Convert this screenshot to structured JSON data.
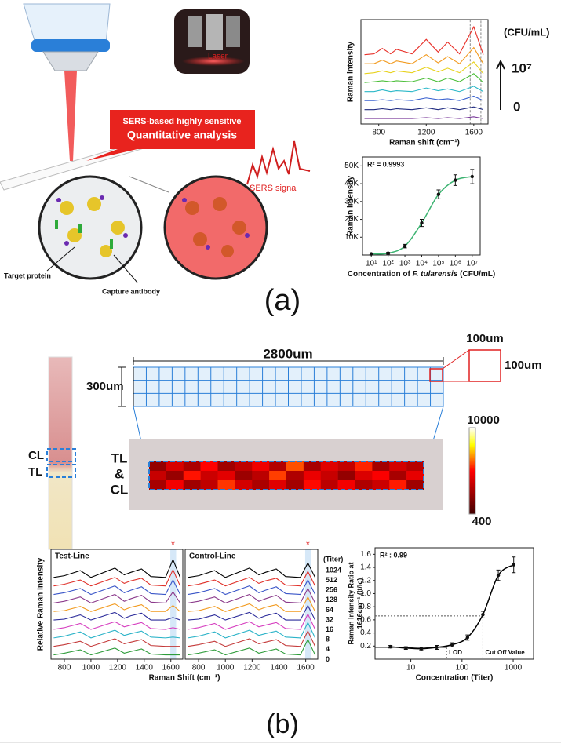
{
  "diagram": {
    "laser": "Laser",
    "callout_line1": "SERS-based highly sensitive",
    "callout_line2": "Quantitative analysis",
    "sers_signal": "SERS signal",
    "target_protein": "Target protein",
    "capture_antibody": "Capture antibody",
    "panel_a": "(a)",
    "panel_b": "(b)",
    "strip_cl": "CL",
    "strip_tl": "TL",
    "grid_width": "2800um",
    "grid_height": "300um",
    "cell_width": "100um",
    "cell_height": "100um"
  },
  "chart_data": [
    {
      "type": "line",
      "ylabel": "Raman intensity",
      "xlabel": "Raman shift (cm⁻¹)",
      "x": [
        680,
        760,
        830,
        900,
        950,
        1080,
        1200,
        1300,
        1380,
        1480,
        1600,
        1680
      ],
      "xlim": [
        650,
        1720
      ],
      "xticks": [
        800,
        1200,
        1600
      ],
      "ylim": [
        -0.6,
        11
      ],
      "highlight_x": [
        1570,
        1660
      ],
      "legend_title": "(CFU/mL)",
      "legend_labels": [
        "10⁷",
        "0"
      ],
      "series": [
        {
          "color": "#e8312a",
          "values": [
            7.1,
            7.2,
            7.8,
            7.2,
            7.7,
            7.2,
            8.8,
            7.4,
            8.5,
            7.2,
            10.2,
            7.1
          ]
        },
        {
          "color": "#f29a1e",
          "values": [
            6.1,
            6.1,
            6.5,
            6.1,
            6.4,
            6.1,
            7.1,
            6.2,
            6.9,
            6.1,
            7.9,
            6.1
          ]
        },
        {
          "color": "#e8d21e",
          "values": [
            5.0,
            5.1,
            5.3,
            5.1,
            5.3,
            5.1,
            5.7,
            5.2,
            5.6,
            5.1,
            6.3,
            5.0
          ]
        },
        {
          "color": "#4cbf3a",
          "values": [
            4.0,
            4.1,
            4.2,
            4.1,
            4.2,
            4.1,
            4.5,
            4.1,
            4.5,
            4.1,
            5.0,
            4.0
          ]
        },
        {
          "color": "#2bb8c8",
          "values": [
            3.0,
            3.0,
            3.2,
            3.0,
            3.1,
            3.0,
            3.4,
            3.1,
            3.3,
            3.0,
            3.6,
            3.0
          ]
        },
        {
          "color": "#3a62d0",
          "values": [
            2.0,
            2.0,
            2.1,
            2.0,
            2.1,
            2.0,
            2.3,
            2.1,
            2.2,
            2.0,
            2.5,
            2.0
          ]
        },
        {
          "color": "#1f2a80",
          "values": [
            1.0,
            1.0,
            1.1,
            1.0,
            1.1,
            1.0,
            1.2,
            1.0,
            1.2,
            1.0,
            1.3,
            1.0
          ]
        },
        {
          "color": "#7a3a9a",
          "values": [
            0,
            0,
            0,
            0,
            0,
            0,
            0.1,
            0,
            0.1,
            0,
            0.2,
            0
          ]
        }
      ]
    },
    {
      "type": "scatter",
      "ylabel": "Raman intensity",
      "xlabel_parts": [
        "Concentration of ",
        "F. tularensis",
        " (CFU/mL)"
      ],
      "annotation": "R² = 0.9993",
      "xscale": "log",
      "fit_color": "#3cb371",
      "x": [
        10,
        100,
        1000,
        10000,
        100000,
        1000000,
        10000000
      ],
      "values": [
        600,
        1000,
        5000,
        18000,
        34000,
        42000,
        44000
      ],
      "errors": [
        500,
        500,
        1000,
        2000,
        2500,
        3000,
        4000
      ],
      "xlim": [
        3,
        30000000
      ],
      "xticks": [
        {
          "value": 10,
          "label": "10¹"
        },
        {
          "value": 100,
          "label": "10²"
        },
        {
          "value": 1000,
          "label": "10³"
        },
        {
          "value": 10000,
          "label": "10⁴"
        },
        {
          "value": 100000,
          "label": "10⁵"
        },
        {
          "value": 1000000,
          "label": "10⁶"
        },
        {
          "value": 10000000,
          "label": "10⁷"
        }
      ],
      "ylim": [
        0,
        55000
      ],
      "yticks": [
        {
          "value": 10000,
          "label": "10K"
        },
        {
          "value": 20000,
          "label": "20K"
        },
        {
          "value": 30000,
          "label": "30K"
        },
        {
          "value": 40000,
          "label": "40K"
        },
        {
          "value": 50000,
          "label": "50K"
        }
      ]
    },
    {
      "type": "heatmap",
      "row_labels": [
        "TL",
        "&",
        "CL"
      ],
      "clim": [
        400,
        10000
      ],
      "values": [
        [
          2500,
          4200,
          3100,
          5200,
          2800,
          3600,
          4800,
          3300,
          6100,
          3000,
          4400,
          3700,
          5600,
          2900,
          4100,
          3400
        ],
        [
          3800,
          2600,
          5400,
          3900,
          4500,
          2700,
          3500,
          5900,
          3200,
          4700,
          3800,
          2500,
          4300,
          5100,
          3000,
          4600
        ],
        [
          3000,
          4900,
          2800,
          3600,
          5800,
          4100,
          3100,
          4400,
          2900,
          5300,
          3500,
          4900,
          3200,
          3900,
          5500,
          2800
        ]
      ]
    },
    {
      "type": "line",
      "title": "Test-Line",
      "ylabel": "Relative Raman Intensity",
      "xlabel": "Raman Shift (cm⁻¹)",
      "x": [
        720,
        800,
        920,
        1000,
        1180,
        1250,
        1300,
        1380,
        1450,
        1560,
        1616,
        1670
      ],
      "xlim": [
        700,
        1690
      ],
      "xticks": [
        800,
        1000,
        1200,
        1400,
        1600
      ],
      "ylim": [
        -0.3,
        12.6
      ],
      "highlight_x": [
        1596,
        1640
      ],
      "peak_marker": {
        "x": 1616,
        "label": "*"
      },
      "series": [
        {
          "color": "#000000",
          "values": [
            9.3,
            9.5,
            10.1,
            9.3,
            10.4,
            9.6,
            9.9,
            10.3,
            9.4,
            9.3,
            11.4,
            9.3
          ]
        },
        {
          "color": "#e0312a",
          "values": [
            8.3,
            8.5,
            9.0,
            8.3,
            9.3,
            8.6,
            8.9,
            9.2,
            8.4,
            8.3,
            10.2,
            8.3
          ]
        },
        {
          "color": "#3a56c8",
          "values": [
            7.3,
            7.5,
            8.0,
            7.3,
            8.3,
            7.5,
            7.8,
            8.2,
            7.4,
            7.3,
            9.0,
            7.3
          ]
        },
        {
          "color": "#8b3a8b",
          "values": [
            6.3,
            6.5,
            7.0,
            6.3,
            7.3,
            6.5,
            6.8,
            7.2,
            6.4,
            6.3,
            7.6,
            6.3
          ]
        },
        {
          "color": "#f29a1e",
          "values": [
            5.3,
            5.4,
            5.9,
            5.3,
            6.2,
            5.5,
            5.8,
            6.1,
            5.3,
            5.3,
            6.0,
            5.3
          ]
        },
        {
          "color": "#2b2b9a",
          "values": [
            4.3,
            4.4,
            4.9,
            4.3,
            5.2,
            4.5,
            4.8,
            5.1,
            4.3,
            4.3,
            4.6,
            4.3
          ]
        },
        {
          "color": "#d63fc0",
          "values": [
            3.2,
            3.4,
            3.9,
            3.2,
            4.1,
            3.5,
            3.7,
            4.0,
            3.3,
            3.2,
            3.4,
            3.2
          ]
        },
        {
          "color": "#2bb3c8",
          "values": [
            2.2,
            2.4,
            2.9,
            2.2,
            3.1,
            2.5,
            2.7,
            3.0,
            2.3,
            2.2,
            2.3,
            2.2
          ]
        },
        {
          "color": "#c43a3a",
          "values": [
            1.2,
            1.4,
            1.8,
            1.2,
            2.1,
            1.5,
            1.7,
            2.0,
            1.3,
            1.2,
            1.2,
            1.2
          ]
        },
        {
          "color": "#2e9c3a",
          "values": [
            0.2,
            0.4,
            0.8,
            0.2,
            1.0,
            0.4,
            0.6,
            0.9,
            0.3,
            0.2,
            0.2,
            0.2
          ]
        }
      ]
    },
    {
      "type": "line",
      "title": "Control-Line",
      "legend_title": "(Titer)",
      "x": [
        720,
        800,
        920,
        1000,
        1180,
        1250,
        1300,
        1380,
        1450,
        1560,
        1616,
        1670
      ],
      "xlim": [
        700,
        1690
      ],
      "xticks": [
        800,
        1000,
        1200,
        1400,
        1600
      ],
      "ylim": [
        -0.3,
        12.6
      ],
      "highlight_x": [
        1596,
        1640
      ],
      "peak_marker": {
        "x": 1616,
        "label": "*"
      },
      "series": [
        {
          "name": "1024",
          "color": "#000000",
          "values": [
            9.3,
            9.5,
            10.1,
            9.3,
            10.4,
            9.6,
            9.9,
            10.3,
            9.4,
            9.3,
            11.0,
            9.3
          ]
        },
        {
          "name": "512",
          "color": "#e0312a",
          "values": [
            8.3,
            8.5,
            9.0,
            8.3,
            9.3,
            8.6,
            8.9,
            9.2,
            8.4,
            8.3,
            10.0,
            8.3
          ]
        },
        {
          "name": "256",
          "color": "#3a56c8",
          "values": [
            7.3,
            7.5,
            8.0,
            7.3,
            8.3,
            7.5,
            7.8,
            8.2,
            7.4,
            7.3,
            9.0,
            7.3
          ]
        },
        {
          "name": "128",
          "color": "#8b3a8b",
          "values": [
            6.3,
            6.5,
            7.0,
            6.3,
            7.3,
            6.5,
            6.8,
            7.2,
            6.4,
            6.3,
            8.0,
            6.3
          ]
        },
        {
          "name": "64",
          "color": "#f29a1e",
          "values": [
            5.3,
            5.4,
            5.9,
            5.3,
            6.2,
            5.5,
            5.8,
            6.1,
            5.3,
            5.3,
            7.0,
            5.3
          ]
        },
        {
          "name": "32",
          "color": "#2b2b9a",
          "values": [
            4.3,
            4.4,
            4.9,
            4.3,
            5.2,
            4.5,
            4.8,
            5.1,
            4.3,
            4.3,
            6.0,
            4.3
          ]
        },
        {
          "name": "16",
          "color": "#d63fc0",
          "values": [
            3.2,
            3.4,
            3.9,
            3.2,
            4.1,
            3.5,
            3.7,
            4.0,
            3.3,
            3.2,
            5.0,
            3.2
          ]
        },
        {
          "name": "8",
          "color": "#2bb3c8",
          "values": [
            2.2,
            2.4,
            2.9,
            2.2,
            3.1,
            2.5,
            2.7,
            3.0,
            2.3,
            2.2,
            4.0,
            2.2
          ]
        },
        {
          "name": "4",
          "color": "#c43a3a",
          "values": [
            1.2,
            1.4,
            1.8,
            1.2,
            2.1,
            1.5,
            1.7,
            2.0,
            1.3,
            1.2,
            3.0,
            1.2
          ]
        },
        {
          "name": "0",
          "color": "#2e9c3a",
          "values": [
            0.2,
            0.4,
            0.8,
            0.2,
            1.0,
            0.4,
            0.6,
            0.9,
            0.3,
            0.2,
            2.0,
            0.2
          ]
        }
      ]
    },
    {
      "type": "scatter",
      "ylabel_lines": [
        "Raman Intensity Ratio at",
        "1616cm⁻¹ (It/Ic)"
      ],
      "xlabel": "Concentration (Titer)",
      "annotation": "R² : 0.99",
      "xscale": "log",
      "fit_color": "#000000",
      "x": [
        4,
        8,
        16,
        32,
        64,
        128,
        256,
        512,
        1024
      ],
      "values": [
        0.19,
        0.17,
        0.16,
        0.18,
        0.22,
        0.33,
        0.68,
        1.28,
        1.44
      ],
      "errors": [
        0.02,
        0.02,
        0.02,
        0.03,
        0.03,
        0.04,
        0.05,
        0.08,
        0.12
      ],
      "xlim": [
        2,
        2500
      ],
      "xticks": [
        10,
        100,
        1000
      ],
      "ylim": [
        0,
        1.7
      ],
      "yticks": [
        0.2,
        0.4,
        0.6,
        0.8,
        {
          "value": 1,
          "label": "1.0"
        },
        1.2,
        1.4,
        1.6
      ],
      "reference_lines": [
        {
          "label": "LOD",
          "x": 50,
          "y": 0.18
        },
        {
          "label": "Cut Off Value",
          "x": 256,
          "y": 0.66
        }
      ]
    }
  ]
}
